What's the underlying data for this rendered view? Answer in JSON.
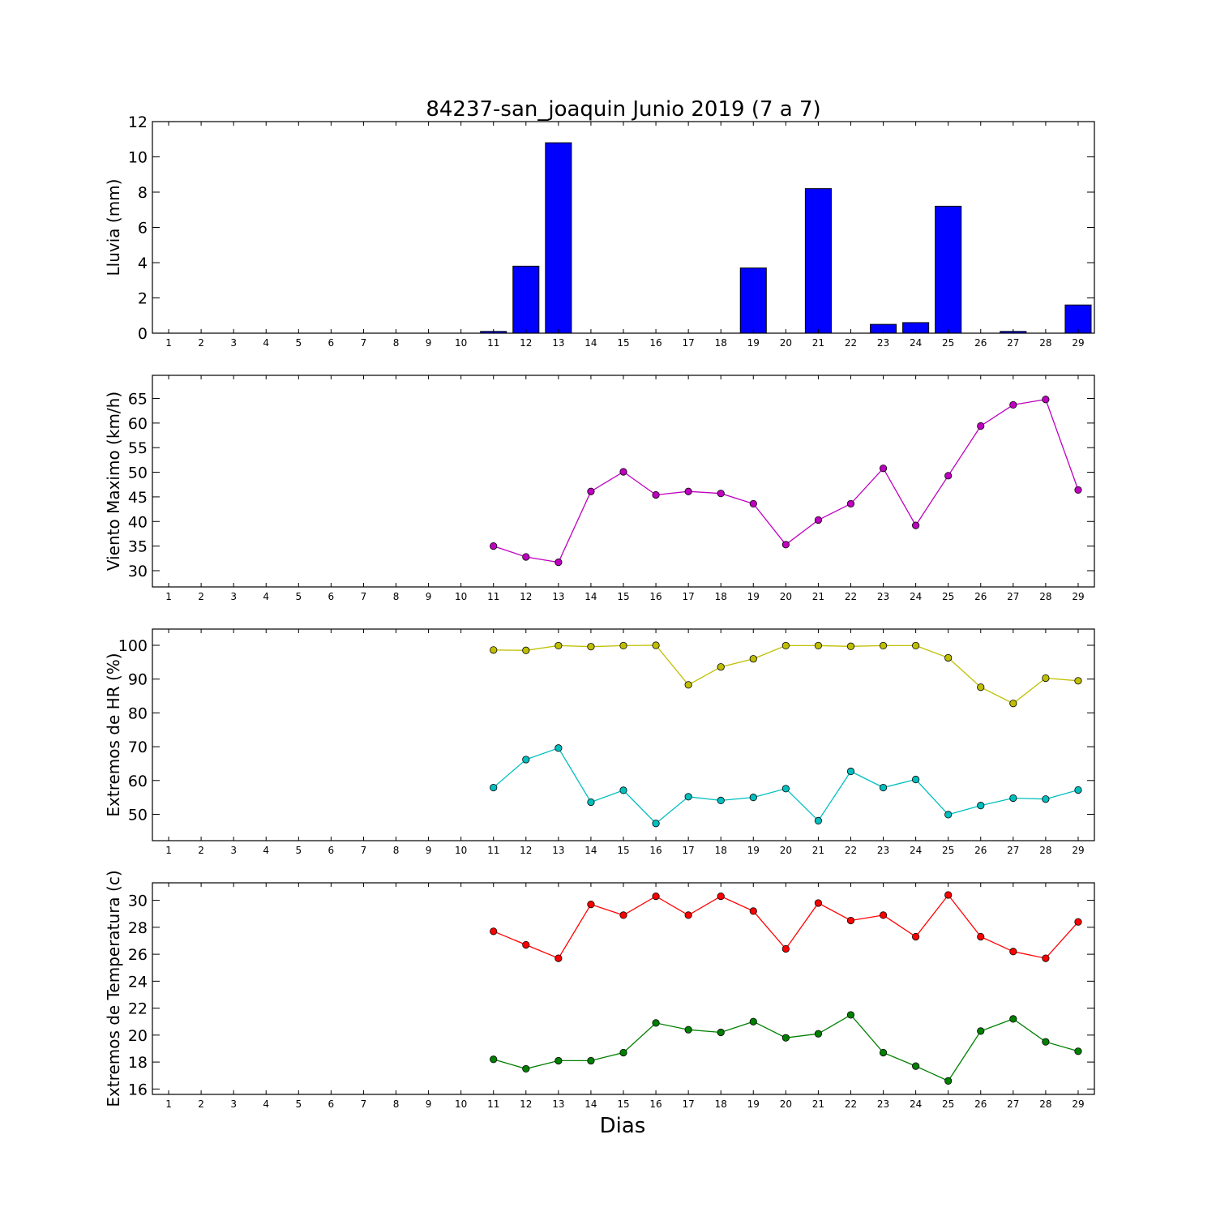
{
  "chart_data": [
    {
      "type": "bar",
      "title": "84237-san_joaquin Junio 2019  (7 a 7)",
      "ylabel": "Lluvia (mm)",
      "xlabel": "",
      "x": [
        1,
        2,
        3,
        4,
        5,
        6,
        7,
        8,
        9,
        10,
        11,
        12,
        13,
        14,
        15,
        16,
        17,
        18,
        19,
        20,
        21,
        22,
        23,
        24,
        25,
        26,
        27,
        28,
        29
      ],
      "ylim": [
        0,
        12
      ],
      "yticks": [
        0,
        2,
        4,
        6,
        8,
        10,
        12
      ],
      "series": [
        {
          "color": "#0000ff",
          "values": [
            0,
            0,
            0,
            0,
            0,
            0,
            0,
            0,
            0,
            0,
            0.1,
            3.8,
            10.8,
            0,
            0,
            0,
            0,
            0,
            3.7,
            0,
            8.2,
            0,
            0.5,
            0.6,
            7.2,
            0,
            0.1,
            0,
            1.6
          ]
        }
      ]
    },
    {
      "type": "line",
      "ylabel": "Viento Maximo (km/h)",
      "xlabel": "",
      "x": [
        1,
        2,
        3,
        4,
        5,
        6,
        7,
        8,
        9,
        10,
        11,
        12,
        13,
        14,
        15,
        16,
        17,
        18,
        19,
        20,
        21,
        22,
        23,
        24,
        25,
        26,
        27,
        28,
        29
      ],
      "ylim": [
        26.7,
        69.7
      ],
      "yticks": [
        30,
        35,
        40,
        45,
        50,
        55,
        60,
        65
      ],
      "series": [
        {
          "color": "#bf00bf",
          "values": [
            null,
            null,
            null,
            null,
            null,
            null,
            null,
            null,
            null,
            null,
            35,
            32.8,
            31.7,
            46.1,
            50.1,
            45.4,
            46.1,
            45.7,
            43.6,
            35.3,
            40.3,
            43.6,
            50.8,
            39.2,
            49.3,
            59.4,
            63.7,
            64.8,
            46.4
          ]
        }
      ]
    },
    {
      "type": "line",
      "ylabel": "Extremos de HR (%)",
      "xlabel": "",
      "x": [
        1,
        2,
        3,
        4,
        5,
        6,
        7,
        8,
        9,
        10,
        11,
        12,
        13,
        14,
        15,
        16,
        17,
        18,
        19,
        20,
        21,
        22,
        23,
        24,
        25,
        26,
        27,
        28,
        29
      ],
      "ylim": [
        42.2,
        104.8
      ],
      "yticks": [
        50,
        60,
        70,
        80,
        90,
        100
      ],
      "series": [
        {
          "color": "#bfbf00",
          "values": [
            null,
            null,
            null,
            null,
            null,
            null,
            null,
            null,
            null,
            null,
            98.6,
            98.5,
            99.9,
            99.6,
            99.9,
            100,
            88.3,
            93.6,
            96,
            99.9,
            99.9,
            99.7,
            99.9,
            99.9,
            96.3,
            87.6,
            82.8,
            90.3,
            89.5
          ]
        },
        {
          "color": "#00bfbf",
          "values": [
            null,
            null,
            null,
            null,
            null,
            null,
            null,
            null,
            null,
            null,
            57.9,
            66.2,
            69.6,
            53.6,
            57.1,
            47.3,
            55.2,
            54.1,
            55,
            57.6,
            48.1,
            62.7,
            57.9,
            60.3,
            49.9,
            52.6,
            54.8,
            54.5,
            57.2
          ]
        }
      ]
    },
    {
      "type": "line",
      "ylabel": "Extremos de Temperatura (c)",
      "xlabel": "Dias",
      "x": [
        1,
        2,
        3,
        4,
        5,
        6,
        7,
        8,
        9,
        10,
        11,
        12,
        13,
        14,
        15,
        16,
        17,
        18,
        19,
        20,
        21,
        22,
        23,
        24,
        25,
        26,
        27,
        28,
        29
      ],
      "ylim": [
        15.6,
        31.3
      ],
      "yticks": [
        16,
        18,
        20,
        22,
        24,
        26,
        28,
        30
      ],
      "series": [
        {
          "color": "#ff0000",
          "values": [
            null,
            null,
            null,
            null,
            null,
            null,
            null,
            null,
            null,
            null,
            27.7,
            26.7,
            25.7,
            29.7,
            28.9,
            30.3,
            28.9,
            30.3,
            29.2,
            26.4,
            29.8,
            28.5,
            28.9,
            27.3,
            30.4,
            27.3,
            26.2,
            25.7,
            28.4
          ]
        },
        {
          "color": "#008000",
          "values": [
            null,
            null,
            null,
            null,
            null,
            null,
            null,
            null,
            null,
            null,
            18.2,
            17.5,
            18.1,
            18.1,
            18.7,
            20.9,
            20.4,
            20.2,
            21,
            19.8,
            20.1,
            21.5,
            18.7,
            17.7,
            16.6,
            20.3,
            21.2,
            19.5,
            18.8
          ]
        }
      ]
    }
  ]
}
